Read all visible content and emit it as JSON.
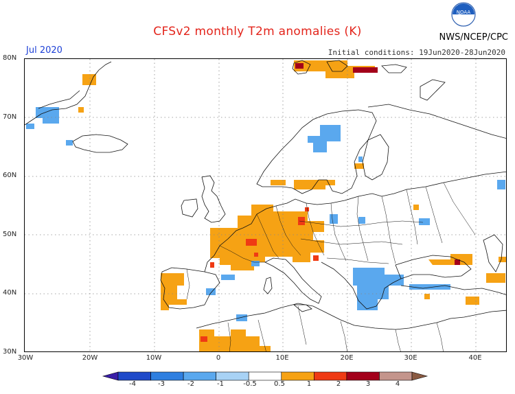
{
  "header": {
    "title": "CFSv2 monthly T2m anomalies (K)",
    "month": "Jul 2020",
    "initial_conditions": "Initial conditions: 19Jun2020-28Jun2020",
    "agency": "NWS/NCEP/CPC",
    "logo_text": "NOAA"
  },
  "axes": {
    "lat_labels": [
      "80N",
      "70N",
      "60N",
      "50N",
      "40N",
      "30N"
    ],
    "lon_labels": [
      "30W",
      "20W",
      "10W",
      "0",
      "10E",
      "20E",
      "30E",
      "40E"
    ]
  },
  "colorbar": {
    "labels": [
      "-4",
      "-3",
      "-2",
      "-1",
      "-0.5",
      "0.5",
      "1",
      "2",
      "3",
      "4"
    ],
    "colors": [
      "#3a1fa8",
      "#1f4ac9",
      "#2f7fe0",
      "#5aa8ee",
      "#a8d2f5",
      "#ffffff",
      "#f6a214",
      "#ef3a14",
      "#a3001a",
      "#c4958c",
      "#8a5a42"
    ]
  },
  "anomaly_colors": {
    "warm_1": "#f6a214",
    "warm_2": "#ef3a14",
    "warm_3": "#a3001a",
    "cool_1": "#5aa8ee",
    "cool_2": "#2f7fe0"
  }
}
